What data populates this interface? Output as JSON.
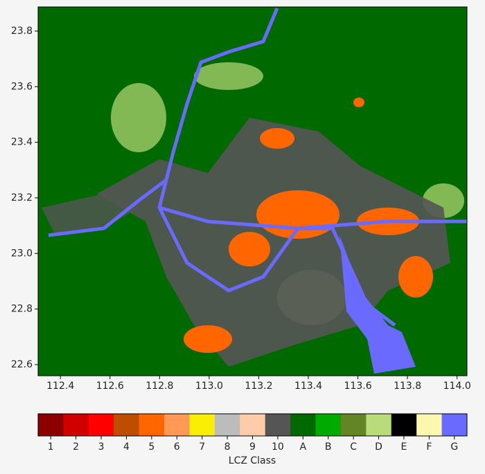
{
  "chart_data": {
    "type": "map",
    "xlim": [
      112.31,
      114.04
    ],
    "ylim": [
      22.56,
      23.887
    ],
    "xticks": [
      112.4,
      112.6,
      112.8,
      {
        "value": 113,
        "label": "113.0"
      },
      113.2,
      113.4,
      113.6,
      113.8,
      {
        "value": 114,
        "label": "114.0"
      }
    ],
    "yticks": [
      22.6,
      22.8,
      {
        "value": 23,
        "label": "23.0"
      },
      23.2,
      23.4,
      23.6,
      23.8
    ],
    "colorbar": {
      "label": "LCZ Class",
      "categories": [
        "1",
        "2",
        "3",
        "4",
        "5",
        "6",
        "7",
        "8",
        "9",
        "10",
        "A",
        "B",
        "C",
        "D",
        "E",
        "F",
        "G"
      ],
      "colors": [
        "#8c0000",
        "#d10000",
        "#ff0000",
        "#bf4d00",
        "#ff6600",
        "#ff9955",
        "#faee05",
        "#bcbcbc",
        "#ffccaa",
        "#555555",
        "#006a00",
        "#00aa00",
        "#648525",
        "#b9db79",
        "#000000",
        "#fbf7ae",
        "#6a6aff"
      ]
    }
  }
}
